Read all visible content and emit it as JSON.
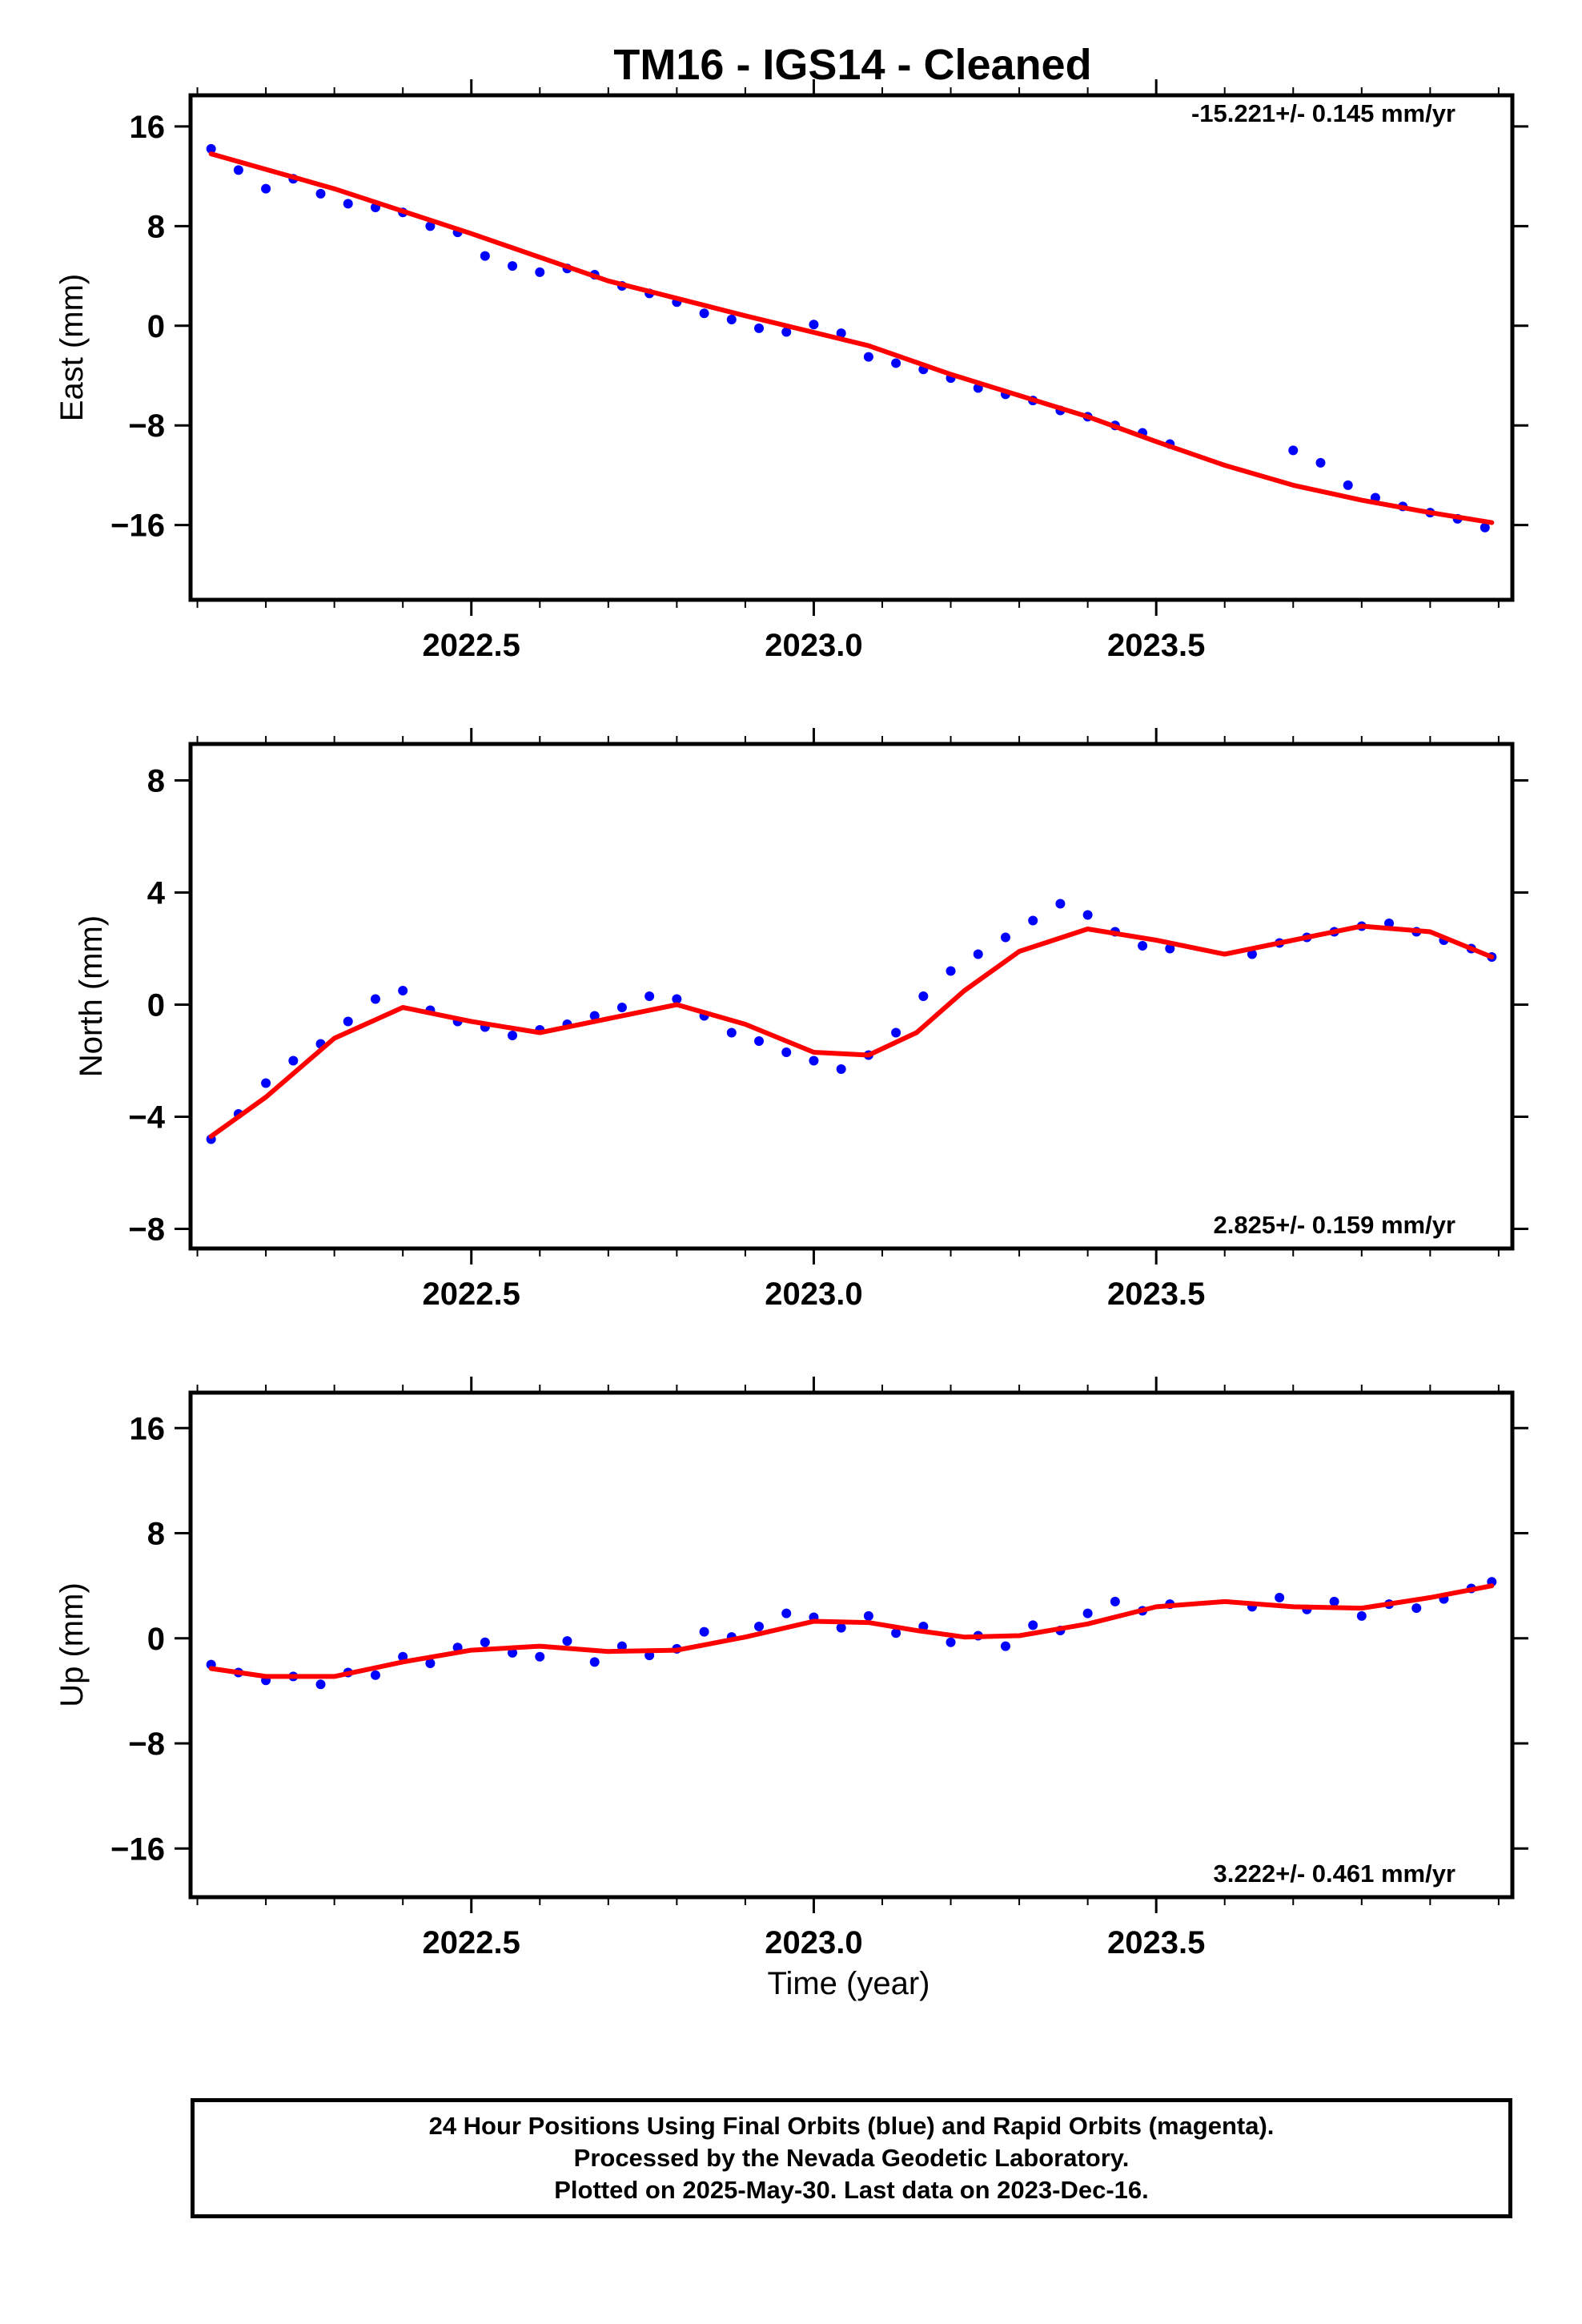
{
  "title": "TM16  - IGS14 - Cleaned",
  "x_label": "Time (year)",
  "footer": {
    "line1": "24 Hour Positions Using Final Orbits (blue) and Rapid Orbits (magenta).",
    "line2": "Processed by the Nevada Geodetic Laboratory.",
    "line3": "Plotted on 2025-May-30. Last data on 2023-Dec-16."
  },
  "colors": {
    "points": "#0000ff",
    "fit": "#ff0000",
    "frame": "#000000"
  },
  "chart_data": [
    {
      "type": "scatter",
      "ylabel": "East (mm)",
      "rate_label": "-15.221+/- 0.145 mm/yr",
      "xlim": [
        2022.09,
        2024.02
      ],
      "ylim": [
        -22,
        18.5
      ],
      "xticks": [
        2022.5,
        2023.0,
        2023.5
      ],
      "xtick_labels": [
        "2022.5",
        "2023.0",
        "2023.5"
      ],
      "yticks": [
        16,
        8,
        0,
        -8,
        -16
      ],
      "ytick_labels": [
        "16",
        "8",
        "0",
        "−8",
        "−16"
      ],
      "series": [
        {
          "style": "points",
          "x": [
            2022.12,
            2022.16,
            2022.2,
            2022.24,
            2022.28,
            2022.32,
            2022.36,
            2022.4,
            2022.44,
            2022.48,
            2022.52,
            2022.56,
            2022.6,
            2022.64,
            2022.68,
            2022.72,
            2022.76,
            2022.8,
            2022.84,
            2022.88,
            2022.92,
            2022.96,
            2023.0,
            2023.04,
            2023.08,
            2023.12,
            2023.16,
            2023.2,
            2023.24,
            2023.28,
            2023.32,
            2023.36,
            2023.4,
            2023.44,
            2023.48,
            2023.52,
            2023.7,
            2023.74,
            2023.78,
            2023.82,
            2023.86,
            2023.9,
            2023.94,
            2023.98
          ],
          "y": [
            14.2,
            12.5,
            11.0,
            11.8,
            10.6,
            9.8,
            9.5,
            9.1,
            8.0,
            7.5,
            5.6,
            4.8,
            4.3,
            4.6,
            4.1,
            3.2,
            2.6,
            1.9,
            1.0,
            0.5,
            -0.2,
            -0.5,
            0.1,
            -0.6,
            -2.5,
            -3.0,
            -3.5,
            -4.2,
            -5.0,
            -5.5,
            -6.0,
            -6.8,
            -7.3,
            -8.0,
            -8.6,
            -9.5,
            -10.0,
            -11.0,
            -12.8,
            -13.8,
            -14.5,
            -15.0,
            -15.5,
            -16.2
          ]
        },
        {
          "style": "line",
          "x": [
            2022.12,
            2022.3,
            2022.5,
            2022.7,
            2022.9,
            2023.08,
            2023.2,
            2023.3,
            2023.4,
            2023.5,
            2023.6,
            2023.7,
            2023.8,
            2023.9,
            2023.99
          ],
          "y": [
            13.8,
            11.0,
            7.4,
            3.6,
            0.8,
            -1.6,
            -3.9,
            -5.6,
            -7.3,
            -9.3,
            -11.2,
            -12.8,
            -14.0,
            -15.0,
            -15.8
          ]
        }
      ]
    },
    {
      "type": "scatter",
      "ylabel": "North (mm)",
      "rate_label": "2.825+/- 0.159 mm/yr",
      "xlim": [
        2022.09,
        2024.02
      ],
      "ylim": [
        -8.7,
        9.3
      ],
      "xticks": [
        2022.5,
        2023.0,
        2023.5
      ],
      "xtick_labels": [
        "2022.5",
        "2023.0",
        "2023.5"
      ],
      "yticks": [
        8,
        4,
        0,
        -4,
        -8
      ],
      "ytick_labels": [
        "8",
        "4",
        "0",
        "−4",
        "−8"
      ],
      "series": [
        {
          "style": "points",
          "x": [
            2022.12,
            2022.16,
            2022.2,
            2022.24,
            2022.28,
            2022.32,
            2022.36,
            2022.4,
            2022.44,
            2022.48,
            2022.52,
            2022.56,
            2022.6,
            2022.64,
            2022.68,
            2022.72,
            2022.76,
            2022.8,
            2022.84,
            2022.88,
            2022.92,
            2022.96,
            2023.0,
            2023.04,
            2023.08,
            2023.12,
            2023.16,
            2023.2,
            2023.24,
            2023.28,
            2023.32,
            2023.36,
            2023.4,
            2023.44,
            2023.48,
            2023.52,
            2023.64,
            2023.68,
            2023.72,
            2023.76,
            2023.8,
            2023.84,
            2023.88,
            2023.92,
            2023.96,
            2023.99
          ],
          "y": [
            -4.8,
            -3.9,
            -2.8,
            -2.0,
            -1.4,
            -0.6,
            0.2,
            0.5,
            -0.2,
            -0.6,
            -0.8,
            -1.1,
            -0.9,
            -0.7,
            -0.4,
            -0.1,
            0.3,
            0.2,
            -0.4,
            -1.0,
            -1.3,
            -1.7,
            -2.0,
            -2.3,
            -1.8,
            -1.0,
            0.3,
            1.2,
            1.8,
            2.4,
            3.0,
            3.6,
            3.2,
            2.6,
            2.1,
            2.0,
            1.8,
            2.2,
            2.4,
            2.6,
            2.8,
            2.9,
            2.6,
            2.3,
            2.0,
            1.7
          ]
        },
        {
          "style": "line",
          "x": [
            2022.12,
            2022.2,
            2022.3,
            2022.4,
            2022.5,
            2022.6,
            2022.7,
            2022.8,
            2022.9,
            2023.0,
            2023.08,
            2023.15,
            2023.22,
            2023.3,
            2023.4,
            2023.5,
            2023.6,
            2023.7,
            2023.8,
            2023.9,
            2023.99
          ],
          "y": [
            -4.7,
            -3.3,
            -1.2,
            -0.1,
            -0.6,
            -1.0,
            -0.5,
            0.0,
            -0.7,
            -1.7,
            -1.8,
            -1.0,
            0.5,
            1.9,
            2.7,
            2.3,
            1.8,
            2.3,
            2.8,
            2.6,
            1.7
          ]
        }
      ]
    },
    {
      "type": "scatter",
      "ylabel": "Up (mm)",
      "rate_label": "3.222+/- 0.461 mm/yr",
      "xlim": [
        2022.09,
        2024.02
      ],
      "ylim": [
        -19.7,
        18.7
      ],
      "xticks": [
        2022.5,
        2023.0,
        2023.5
      ],
      "xtick_labels": [
        "2022.5",
        "2023.0",
        "2023.5"
      ],
      "yticks": [
        16,
        8,
        0,
        -8,
        -16
      ],
      "ytick_labels": [
        "16",
        "8",
        "0",
        "−8",
        "−16"
      ],
      "series": [
        {
          "style": "points",
          "x": [
            2022.12,
            2022.16,
            2022.2,
            2022.24,
            2022.28,
            2022.32,
            2022.36,
            2022.4,
            2022.44,
            2022.48,
            2022.52,
            2022.56,
            2022.6,
            2022.64,
            2022.68,
            2022.72,
            2022.76,
            2022.8,
            2022.84,
            2022.88,
            2022.92,
            2022.96,
            2023.0,
            2023.04,
            2023.08,
            2023.12,
            2023.16,
            2023.2,
            2023.24,
            2023.28,
            2023.32,
            2023.36,
            2023.4,
            2023.44,
            2023.48,
            2023.52,
            2023.64,
            2023.68,
            2023.72,
            2023.76,
            2023.8,
            2023.84,
            2023.88,
            2023.92,
            2023.96,
            2023.99
          ],
          "y": [
            -2.0,
            -2.6,
            -3.2,
            -2.9,
            -3.5,
            -2.6,
            -2.8,
            -1.4,
            -1.9,
            -0.7,
            -0.3,
            -1.1,
            -1.4,
            -0.2,
            -1.8,
            -0.6,
            -1.3,
            -0.8,
            0.5,
            0.1,
            0.9,
            1.9,
            1.6,
            0.8,
            1.7,
            0.4,
            0.9,
            -0.3,
            0.2,
            -0.6,
            1.0,
            0.6,
            1.9,
            2.8,
            2.1,
            2.6,
            2.4,
            3.1,
            2.2,
            2.8,
            1.7,
            2.6,
            2.3,
            3.0,
            3.8,
            4.3
          ]
        },
        {
          "style": "line",
          "x": [
            2022.12,
            2022.2,
            2022.3,
            2022.4,
            2022.5,
            2022.6,
            2022.7,
            2022.8,
            2022.9,
            2023.0,
            2023.08,
            2023.15,
            2023.22,
            2023.3,
            2023.4,
            2023.5,
            2023.6,
            2023.7,
            2023.8,
            2023.9,
            2023.99
          ],
          "y": [
            -2.3,
            -2.9,
            -2.9,
            -1.8,
            -0.9,
            -0.6,
            -1.0,
            -0.9,
            0.1,
            1.3,
            1.2,
            0.6,
            0.1,
            0.2,
            1.1,
            2.4,
            2.8,
            2.4,
            2.3,
            3.1,
            4.0
          ]
        }
      ]
    }
  ]
}
